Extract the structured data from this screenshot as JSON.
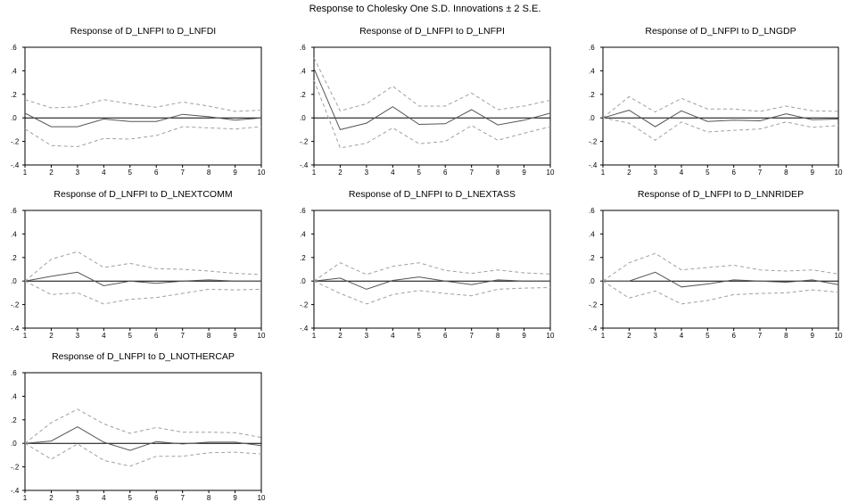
{
  "figure_title": "Response to Cholesky One S.D. Innovations ± 2 S.E.",
  "axes": {
    "x_ticks": [
      "1",
      "2",
      "3",
      "4",
      "5",
      "6",
      "7",
      "8",
      "9",
      "10"
    ],
    "y_ticks": [
      ".6",
      ".4",
      ".2",
      ".0",
      "-.2",
      "-.4"
    ]
  },
  "colors": {
    "response": "#555555",
    "bands": "#a0a0a0",
    "zero_line": "#000000",
    "frame": "#000000"
  },
  "chart_data": [
    {
      "type": "line",
      "title": "Response of D_LNFPI to D_LNFDI",
      "x": [
        1,
        2,
        3,
        4,
        5,
        6,
        7,
        8,
        9,
        10
      ],
      "ylim": [
        -0.4,
        0.6
      ],
      "series": [
        {
          "values": [
            0.04,
            -0.075,
            -0.075,
            -0.01,
            -0.03,
            -0.03,
            0.03,
            0.01,
            -0.02,
            0.0
          ]
        },
        {
          "values": [
            0.155,
            0.085,
            0.095,
            0.155,
            0.12,
            0.09,
            0.135,
            0.1,
            0.055,
            0.065
          ]
        },
        {
          "values": [
            -0.095,
            -0.235,
            -0.245,
            -0.175,
            -0.18,
            -0.15,
            -0.075,
            -0.085,
            -0.095,
            -0.075
          ]
        }
      ]
    },
    {
      "type": "line",
      "title": "Response of D_LNFPI to D_LNFPI",
      "x": [
        1,
        2,
        3,
        4,
        5,
        6,
        7,
        8,
        9,
        10
      ],
      "ylim": [
        -0.4,
        0.6
      ],
      "series": [
        {
          "values": [
            0.42,
            -0.1,
            -0.045,
            0.095,
            -0.055,
            -0.05,
            0.07,
            -0.06,
            -0.02,
            0.04
          ]
        },
        {
          "values": [
            0.51,
            0.06,
            0.12,
            0.27,
            0.1,
            0.1,
            0.21,
            0.07,
            0.1,
            0.15
          ]
        },
        {
          "values": [
            0.32,
            -0.255,
            -0.215,
            -0.085,
            -0.22,
            -0.2,
            -0.065,
            -0.19,
            -0.13,
            -0.075
          ]
        }
      ]
    },
    {
      "type": "line",
      "title": "Response of D_LNFPI to D_LNGDP",
      "x": [
        1,
        2,
        3,
        4,
        5,
        6,
        7,
        8,
        9,
        10
      ],
      "ylim": [
        -0.4,
        0.6
      ],
      "series": [
        {
          "values": [
            0.0,
            0.065,
            -0.075,
            0.06,
            -0.03,
            -0.02,
            -0.025,
            0.035,
            -0.015,
            -0.01
          ]
        },
        {
          "values": [
            0.0,
            0.18,
            0.05,
            0.165,
            0.075,
            0.075,
            0.055,
            0.1,
            0.06,
            0.055
          ]
        },
        {
          "values": [
            0.0,
            -0.045,
            -0.19,
            -0.035,
            -0.12,
            -0.105,
            -0.095,
            -0.035,
            -0.08,
            -0.065
          ]
        }
      ]
    },
    {
      "type": "line",
      "title": "Response of D_LNFPI to D_LNEXTCOMM",
      "x": [
        1,
        2,
        3,
        4,
        5,
        6,
        7,
        8,
        9,
        10
      ],
      "ylim": [
        -0.4,
        0.6
      ],
      "series": [
        {
          "values": [
            0.0,
            0.04,
            0.075,
            -0.04,
            0.0,
            -0.02,
            0.0,
            0.01,
            0.0,
            0.0
          ]
        },
        {
          "values": [
            0.0,
            0.185,
            0.25,
            0.115,
            0.15,
            0.105,
            0.1,
            0.085,
            0.065,
            0.055
          ]
        },
        {
          "values": [
            0.0,
            -0.115,
            -0.1,
            -0.195,
            -0.155,
            -0.14,
            -0.105,
            -0.07,
            -0.075,
            -0.07
          ]
        }
      ]
    },
    {
      "type": "line",
      "title": "Response of D_LNFPI to D_LNEXTASS",
      "x": [
        1,
        2,
        3,
        4,
        5,
        6,
        7,
        8,
        9,
        10
      ],
      "ylim": [
        -0.4,
        0.6
      ],
      "series": [
        {
          "values": [
            0.0,
            0.025,
            -0.07,
            0.005,
            0.035,
            0.0,
            -0.03,
            0.01,
            0.0,
            0.0
          ]
        },
        {
          "values": [
            0.0,
            0.155,
            0.055,
            0.125,
            0.155,
            0.09,
            0.065,
            0.095,
            0.07,
            0.06
          ]
        },
        {
          "values": [
            0.0,
            -0.105,
            -0.195,
            -0.115,
            -0.08,
            -0.105,
            -0.125,
            -0.07,
            -0.06,
            -0.055
          ]
        }
      ]
    },
    {
      "type": "line",
      "title": "Response of D_LNFPI to D_LNNRIDEP",
      "x": [
        1,
        2,
        3,
        4,
        5,
        6,
        7,
        8,
        9,
        10
      ],
      "ylim": [
        -0.4,
        0.6
      ],
      "series": [
        {
          "values": [
            0.0,
            0.0,
            0.075,
            -0.05,
            -0.025,
            0.01,
            0.0,
            -0.01,
            0.01,
            -0.03
          ]
        },
        {
          "values": [
            0.0,
            0.155,
            0.235,
            0.095,
            0.115,
            0.135,
            0.095,
            0.085,
            0.095,
            0.06
          ]
        },
        {
          "values": [
            0.0,
            -0.145,
            -0.085,
            -0.195,
            -0.165,
            -0.115,
            -0.105,
            -0.1,
            -0.075,
            -0.095
          ]
        }
      ]
    },
    {
      "type": "line",
      "title": "Response of D_LNFPI to D_LNOTHERCAP",
      "x": [
        1,
        2,
        3,
        4,
        5,
        6,
        7,
        8,
        9,
        10
      ],
      "ylim": [
        -0.4,
        0.6
      ],
      "series": [
        {
          "values": [
            0.0,
            0.02,
            0.14,
            0.01,
            -0.06,
            0.015,
            -0.005,
            0.01,
            0.01,
            -0.02
          ]
        },
        {
          "values": [
            0.0,
            0.175,
            0.29,
            0.165,
            0.085,
            0.135,
            0.095,
            0.095,
            0.09,
            0.05
          ]
        },
        {
          "values": [
            0.0,
            -0.135,
            -0.005,
            -0.145,
            -0.195,
            -0.11,
            -0.11,
            -0.08,
            -0.075,
            -0.09
          ]
        }
      ]
    }
  ]
}
